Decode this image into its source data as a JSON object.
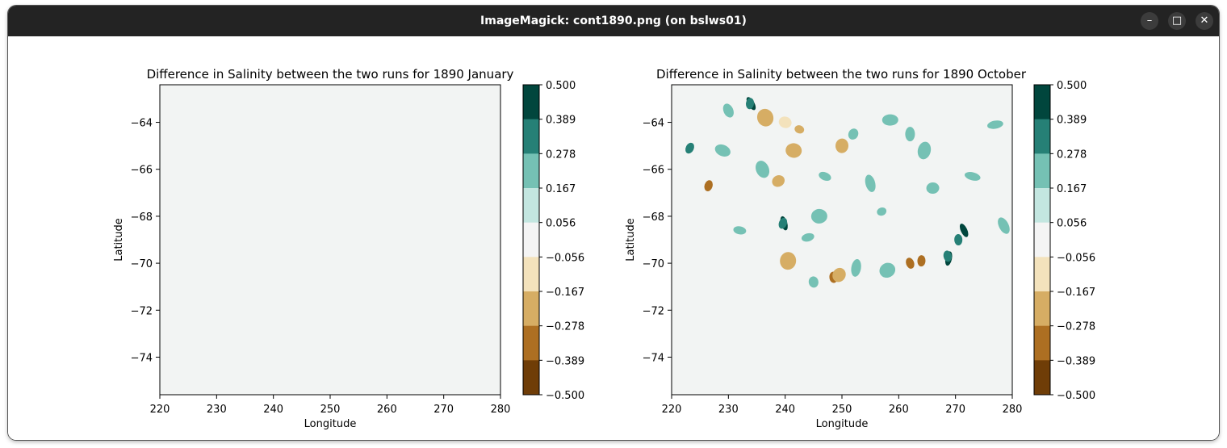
{
  "window": {
    "title": "ImageMagick: cont1890.png (on bslws01)"
  },
  "window_buttons": {
    "minimize": "–",
    "maximize": "□",
    "close": "✕"
  },
  "colors": {
    "titlebar": "#232323",
    "background": "#f2f4f3"
  },
  "chart_data": [
    {
      "type": "contour",
      "title": "Difference in Salinity between the two runs for 1890 January",
      "xlabel": "Longitude",
      "ylabel": "Latitude",
      "xticks": [
        "220",
        "230",
        "240",
        "250",
        "260",
        "270",
        "280"
      ],
      "yticks": [
        "−64",
        "−66",
        "−68",
        "−70",
        "−72",
        "−74"
      ],
      "xlim": [
        220,
        280
      ],
      "ylim": [
        -75.6,
        -62.4
      ],
      "field": "uniform near zero"
    },
    {
      "type": "contour",
      "title": "Difference in Salinity between the two runs for 1890 October",
      "xlabel": "Longitude",
      "ylabel": "Latitude",
      "xticks": [
        "220",
        "230",
        "240",
        "250",
        "260",
        "270",
        "280"
      ],
      "yticks": [
        "−64",
        "−66",
        "−68",
        "−70",
        "−72",
        "−74"
      ],
      "xlim": [
        220,
        280
      ],
      "ylim": [
        -75.6,
        -62.4
      ],
      "field": "scattered positive and negative patches"
    }
  ],
  "colorbar": {
    "ticks": [
      "0.500",
      "0.389",
      "0.278",
      "0.167",
      "0.056",
      "−0.056",
      "−0.167",
      "−0.278",
      "−0.389",
      "−0.500"
    ],
    "colors": [
      "#01463d",
      "#268076",
      "#75c1b4",
      "#c3e6e0",
      "#f4f4f4",
      "#f3e2bc",
      "#d6ad64",
      "#ad6f22",
      "#6f3d07"
    ]
  },
  "patches": [
    {
      "panel": 1,
      "lon": 234.0,
      "lat": -63.2,
      "value": 0.389
    },
    {
      "panel": 1,
      "lon": 233.8,
      "lat": -63.2,
      "value": 0.278
    },
    {
      "panel": 1,
      "lon": 239.8,
      "lat": -68.3,
      "value": 0.389
    },
    {
      "panel": 1,
      "lon": 239.6,
      "lat": -68.3,
      "value": 0.278
    },
    {
      "panel": 1,
      "lon": 270.5,
      "lat": -69.0,
      "value": 0.278
    },
    {
      "panel": 1,
      "lon": 271.5,
      "lat": -68.6,
      "value": 0.389
    },
    {
      "panel": 1,
      "lon": 268.8,
      "lat": -69.8,
      "value": 0.389
    },
    {
      "panel": 1,
      "lon": 268.6,
      "lat": -69.7,
      "value": 0.278
    },
    {
      "panel": 1,
      "lon": 223.2,
      "lat": -65.1,
      "value": 0.278
    },
    {
      "panel": 1,
      "lon": 264.0,
      "lat": -69.9,
      "value": -0.278
    },
    {
      "panel": 1,
      "lon": 262.0,
      "lat": -70.0,
      "value": -0.278
    },
    {
      "panel": 1,
      "lon": 226.5,
      "lat": -66.7,
      "value": -0.278
    },
    {
      "panel": 1,
      "lon": 248.5,
      "lat": -70.6,
      "value": -0.278
    },
    {
      "panel": 1,
      "lon": 238.8,
      "lat": -66.5,
      "value": -0.167
    },
    {
      "panel": 1,
      "lon": 241.5,
      "lat": -65.2,
      "value": -0.167
    },
    {
      "panel": 1,
      "lon": 255.0,
      "lat": -66.6,
      "value": 0.167
    },
    {
      "panel": 1,
      "lon": 247.0,
      "lat": -66.3,
      "value": 0.167
    },
    {
      "panel": 1,
      "lon": 258.5,
      "lat": -63.9,
      "value": 0.167
    },
    {
      "panel": 1,
      "lon": 230.0,
      "lat": -63.5,
      "value": 0.167
    },
    {
      "panel": 1,
      "lon": 264.5,
      "lat": -65.2,
      "value": 0.167
    },
    {
      "panel": 1,
      "lon": 277.0,
      "lat": -64.1,
      "value": 0.167
    },
    {
      "panel": 1,
      "lon": 252.0,
      "lat": -64.5,
      "value": 0.167
    },
    {
      "panel": 1,
      "lon": 250.0,
      "lat": -65.0,
      "value": -0.167
    },
    {
      "panel": 1,
      "lon": 236.5,
      "lat": -63.8,
      "value": -0.167
    },
    {
      "panel": 1,
      "lon": 242.5,
      "lat": -64.3,
      "value": -0.167
    },
    {
      "panel": 1,
      "lon": 266.0,
      "lat": -66.8,
      "value": 0.167
    },
    {
      "panel": 1,
      "lon": 258.0,
      "lat": -70.3,
      "value": 0.167
    },
    {
      "panel": 1,
      "lon": 252.5,
      "lat": -70.2,
      "value": 0.167
    },
    {
      "panel": 1,
      "lon": 244.0,
      "lat": -68.9,
      "value": 0.167
    },
    {
      "panel": 1,
      "lon": 229.0,
      "lat": -65.2,
      "value": 0.167
    },
    {
      "panel": 1,
      "lon": 262.0,
      "lat": -64.5,
      "value": 0.167
    },
    {
      "panel": 1,
      "lon": 236.0,
      "lat": -66.0,
      "value": 0.167
    },
    {
      "panel": 1,
      "lon": 273.0,
      "lat": -66.3,
      "value": 0.167
    },
    {
      "panel": 1,
      "lon": 245.0,
      "lat": -70.8,
      "value": 0.167
    },
    {
      "panel": 1,
      "lon": 249.5,
      "lat": -70.5,
      "value": -0.167
    },
    {
      "panel": 1,
      "lon": 240.5,
      "lat": -69.9,
      "value": -0.167
    },
    {
      "panel": 1,
      "lon": 257.0,
      "lat": -67.8,
      "value": 0.167
    },
    {
      "panel": 1,
      "lon": 240.0,
      "lat": -64.0,
      "value": -0.056
    },
    {
      "panel": 1,
      "lon": 246.0,
      "lat": -68.0,
      "value": 0.167
    },
    {
      "panel": 1,
      "lon": 278.5,
      "lat": -68.4,
      "value": 0.167
    },
    {
      "panel": 1,
      "lon": 232.0,
      "lat": -68.6,
      "value": 0.167
    }
  ]
}
